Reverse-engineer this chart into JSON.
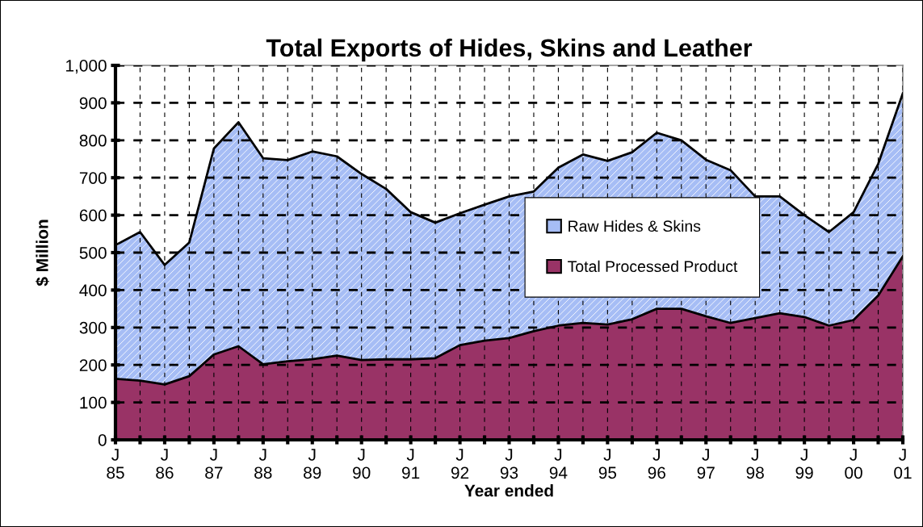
{
  "chart_data": {
    "type": "area",
    "stacked": true,
    "title": "Total Exports of Hides, Skins and Leather",
    "xlabel": "Year ended",
    "ylabel": "$ Million",
    "categories": [
      "J\n85",
      null,
      "J\n86",
      null,
      "J\n87",
      null,
      "J\n88",
      null,
      "J\n89",
      null,
      "J\n90",
      null,
      "J\n91",
      null,
      "J\n92",
      null,
      "J\n93",
      null,
      "J\n94",
      null,
      "J\n95",
      null,
      "J\n96",
      null,
      "J\n97",
      null,
      "J\n98",
      null,
      "J\n99",
      null,
      "J\n00",
      null,
      "J\n01"
    ],
    "series": [
      {
        "name": "Total Processed Product",
        "color": "#993366",
        "values": [
          163,
          158,
          148,
          170,
          228,
          250,
          202,
          210,
          215,
          225,
          213,
          215,
          215,
          218,
          253,
          265,
          272,
          290,
          305,
          312,
          308,
          322,
          350,
          350,
          330,
          312,
          325,
          338,
          328,
          305,
          320,
          385,
          490
        ]
      },
      {
        "name": "Raw Hides & Skins",
        "color": "#a6bdf5",
        "values": [
          357,
          397,
          319,
          357,
          550,
          598,
          550,
          537,
          555,
          532,
          497,
          455,
          393,
          362,
          352,
          363,
          378,
          373,
          422,
          450,
          437,
          446,
          470,
          450,
          418,
          408,
          325,
          312,
          272,
          250,
          288,
          352,
          435
        ]
      }
    ],
    "ylim": [
      0,
      1000
    ],
    "yticks": [
      0,
      100,
      200,
      300,
      400,
      500,
      600,
      700,
      800,
      900,
      {
        "value": 1000,
        "label": "1,000"
      }
    ],
    "grid": true,
    "legend": "center right"
  }
}
